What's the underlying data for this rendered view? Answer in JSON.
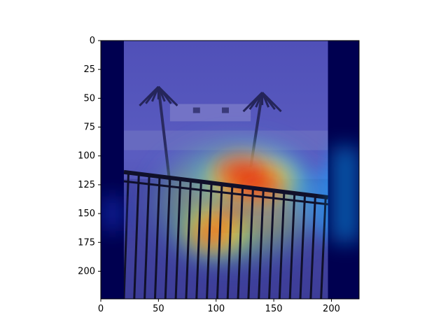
{
  "chart_data": {
    "type": "heatmap",
    "title": "",
    "xlabel": "",
    "ylabel": "",
    "image_size": [
      224,
      224
    ],
    "xlim": [
      0,
      224
    ],
    "ylim": [
      224,
      0
    ],
    "x_ticks": [
      0,
      50,
      100,
      150,
      200
    ],
    "y_ticks": [
      0,
      25,
      50,
      75,
      100,
      125,
      150,
      175,
      200
    ],
    "grid": false,
    "legend": "none",
    "colormap": "jet",
    "description_scene": "photo of balcony railing overlooking storm-damaged houses and palm trees",
    "dark_bands_x": [
      [
        0,
        20
      ],
      [
        197,
        224
      ]
    ],
    "hotspots": [
      {
        "x": 120,
        "y": 113,
        "intensity": 1.0
      },
      {
        "x": 140,
        "y": 128,
        "intensity": 0.9
      },
      {
        "x": 95,
        "y": 168,
        "intensity": 0.75
      },
      {
        "x": 112,
        "y": 148,
        "intensity": 0.7
      }
    ],
    "colors": {
      "background_blue": "#3c3ca8",
      "frame": "#000000",
      "dark_band": "#000050"
    }
  }
}
